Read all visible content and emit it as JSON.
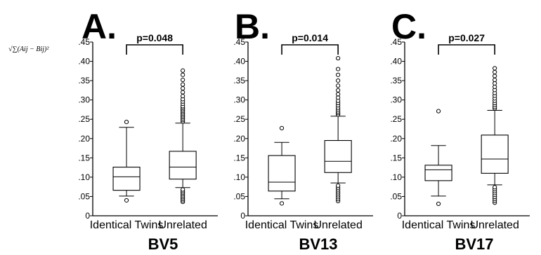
{
  "ylabel_formula": "√∑(Aij − Bij)²",
  "chart_data": [
    {
      "type": "box",
      "panel_label": "A.",
      "title": "BV5",
      "categories": [
        "Identical Twins",
        "Unrelated"
      ],
      "ylim": [
        0,
        0.45
      ],
      "yticks": [
        0,
        0.05,
        0.1,
        0.15,
        0.2,
        0.25,
        0.3,
        0.35,
        0.4,
        0.45
      ],
      "ytick_labels": [
        "0",
        ".05",
        ".10",
        ".15",
        ".20",
        ".25",
        ".30",
        ".35",
        ".40",
        ".45"
      ],
      "significance": {
        "label": "p=0.048",
        "between": [
          0,
          1
        ]
      },
      "boxes": [
        {
          "whisker_low": 0.051,
          "q1": 0.066,
          "median": 0.101,
          "q3": 0.126,
          "whisker_high": 0.229,
          "outliers": [
            0.04,
            0.243
          ]
        },
        {
          "whisker_low": 0.073,
          "q1": 0.095,
          "median": 0.126,
          "q3": 0.167,
          "whisker_high": 0.24,
          "outliers": [
            0.036,
            0.04,
            0.044,
            0.048,
            0.052,
            0.056,
            0.06,
            0.064,
            0.068,
            0.244,
            0.248,
            0.252,
            0.256,
            0.26,
            0.264,
            0.268,
            0.272,
            0.276,
            0.28,
            0.284,
            0.29,
            0.296,
            0.302,
            0.31,
            0.32,
            0.33,
            0.34,
            0.352,
            0.365,
            0.376
          ]
        }
      ]
    },
    {
      "type": "box",
      "panel_label": "B.",
      "title": "BV13",
      "categories": [
        "Identical Twins",
        "Unrelated"
      ],
      "ylim": [
        0,
        0.45
      ],
      "yticks": [
        0,
        0.05,
        0.1,
        0.15,
        0.2,
        0.25,
        0.3,
        0.35,
        0.4,
        0.45
      ],
      "ytick_labels": [
        "0",
        ".05",
        ".10",
        ".15",
        ".20",
        ".25",
        ".30",
        ".35",
        ".40",
        ".45"
      ],
      "significance": {
        "label": "p=0.014",
        "between": [
          0,
          1
        ]
      },
      "boxes": [
        {
          "whisker_low": 0.044,
          "q1": 0.064,
          "median": 0.087,
          "q3": 0.156,
          "whisker_high": 0.19,
          "outliers": [
            0.032,
            0.227
          ]
        },
        {
          "whisker_low": 0.085,
          "q1": 0.112,
          "median": 0.141,
          "q3": 0.195,
          "whisker_high": 0.258,
          "outliers": [
            0.038,
            0.043,
            0.048,
            0.053,
            0.058,
            0.063,
            0.068,
            0.073,
            0.078,
            0.262,
            0.266,
            0.27,
            0.275,
            0.28,
            0.286,
            0.292,
            0.298,
            0.306,
            0.315,
            0.325,
            0.337,
            0.35,
            0.365,
            0.38,
            0.408
          ]
        }
      ]
    },
    {
      "type": "box",
      "panel_label": "C.",
      "title": "BV17",
      "categories": [
        "Identical Twins",
        "Unrelated"
      ],
      "ylim": [
        0,
        0.45
      ],
      "yticks": [
        0,
        0.05,
        0.1,
        0.15,
        0.2,
        0.25,
        0.3,
        0.35,
        0.4,
        0.45
      ],
      "ytick_labels": [
        "0",
        ".05",
        ".10",
        ".15",
        ".20",
        ".25",
        ".30",
        ".35",
        ".40",
        ".45"
      ],
      "significance": {
        "label": "p=0.027",
        "between": [
          0,
          1
        ]
      },
      "boxes": [
        {
          "whisker_low": 0.051,
          "q1": 0.091,
          "median": 0.119,
          "q3": 0.131,
          "whisker_high": 0.182,
          "outliers": [
            0.031,
            0.271
          ]
        },
        {
          "whisker_low": 0.08,
          "q1": 0.11,
          "median": 0.147,
          "q3": 0.209,
          "whisker_high": 0.273,
          "outliers": [
            0.034,
            0.039,
            0.044,
            0.049,
            0.054,
            0.059,
            0.064,
            0.069,
            0.074,
            0.278,
            0.282,
            0.287,
            0.292,
            0.298,
            0.304,
            0.311,
            0.318,
            0.326,
            0.334,
            0.343,
            0.352,
            0.362,
            0.372,
            0.382
          ]
        }
      ]
    }
  ]
}
